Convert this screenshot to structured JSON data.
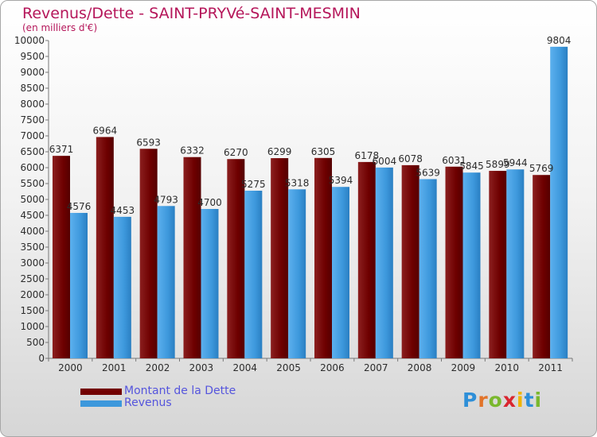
{
  "title": "Revenus/Dette - SAINT-PRYVé-SAINT-MESMIN",
  "subtitle": "(en milliers d'€)",
  "logo": "Proxiti",
  "colors": {
    "dette": "#730000",
    "revenus": "#3d98dc",
    "title": "#b5165a",
    "legend_text": "#5555dd"
  },
  "chart_data": {
    "type": "bar",
    "categories": [
      "2000",
      "2001",
      "2002",
      "2003",
      "2004",
      "2005",
      "2006",
      "2007",
      "2008",
      "2009",
      "2010",
      "2011"
    ],
    "series": [
      {
        "name": "Montant de la Dette",
        "values": [
          6371,
          6964,
          6593,
          6332,
          6270,
          6299,
          6305,
          6178,
          6078,
          6031,
          5899,
          5769
        ]
      },
      {
        "name": "Revenus",
        "values": [
          4576,
          4453,
          4793,
          4700,
          5275,
          5318,
          5394,
          6004,
          5639,
          5845,
          5944,
          9804
        ]
      }
    ],
    "ylim": [
      0,
      10000
    ],
    "ytick_step": 500,
    "data_labels": [
      [
        "6371",
        "6964",
        "6593",
        "6332",
        "6270",
        "6299",
        "6305",
        "6178",
        "6078",
        "6031",
        "5899",
        "5769"
      ],
      [
        "4576",
        "4453",
        "4793",
        "4700",
        "5275",
        "5318",
        "5394",
        "6004",
        "5639",
        "5845",
        "5944",
        "9804"
      ]
    ],
    "legend_position": "bottom-left",
    "grid": false
  }
}
